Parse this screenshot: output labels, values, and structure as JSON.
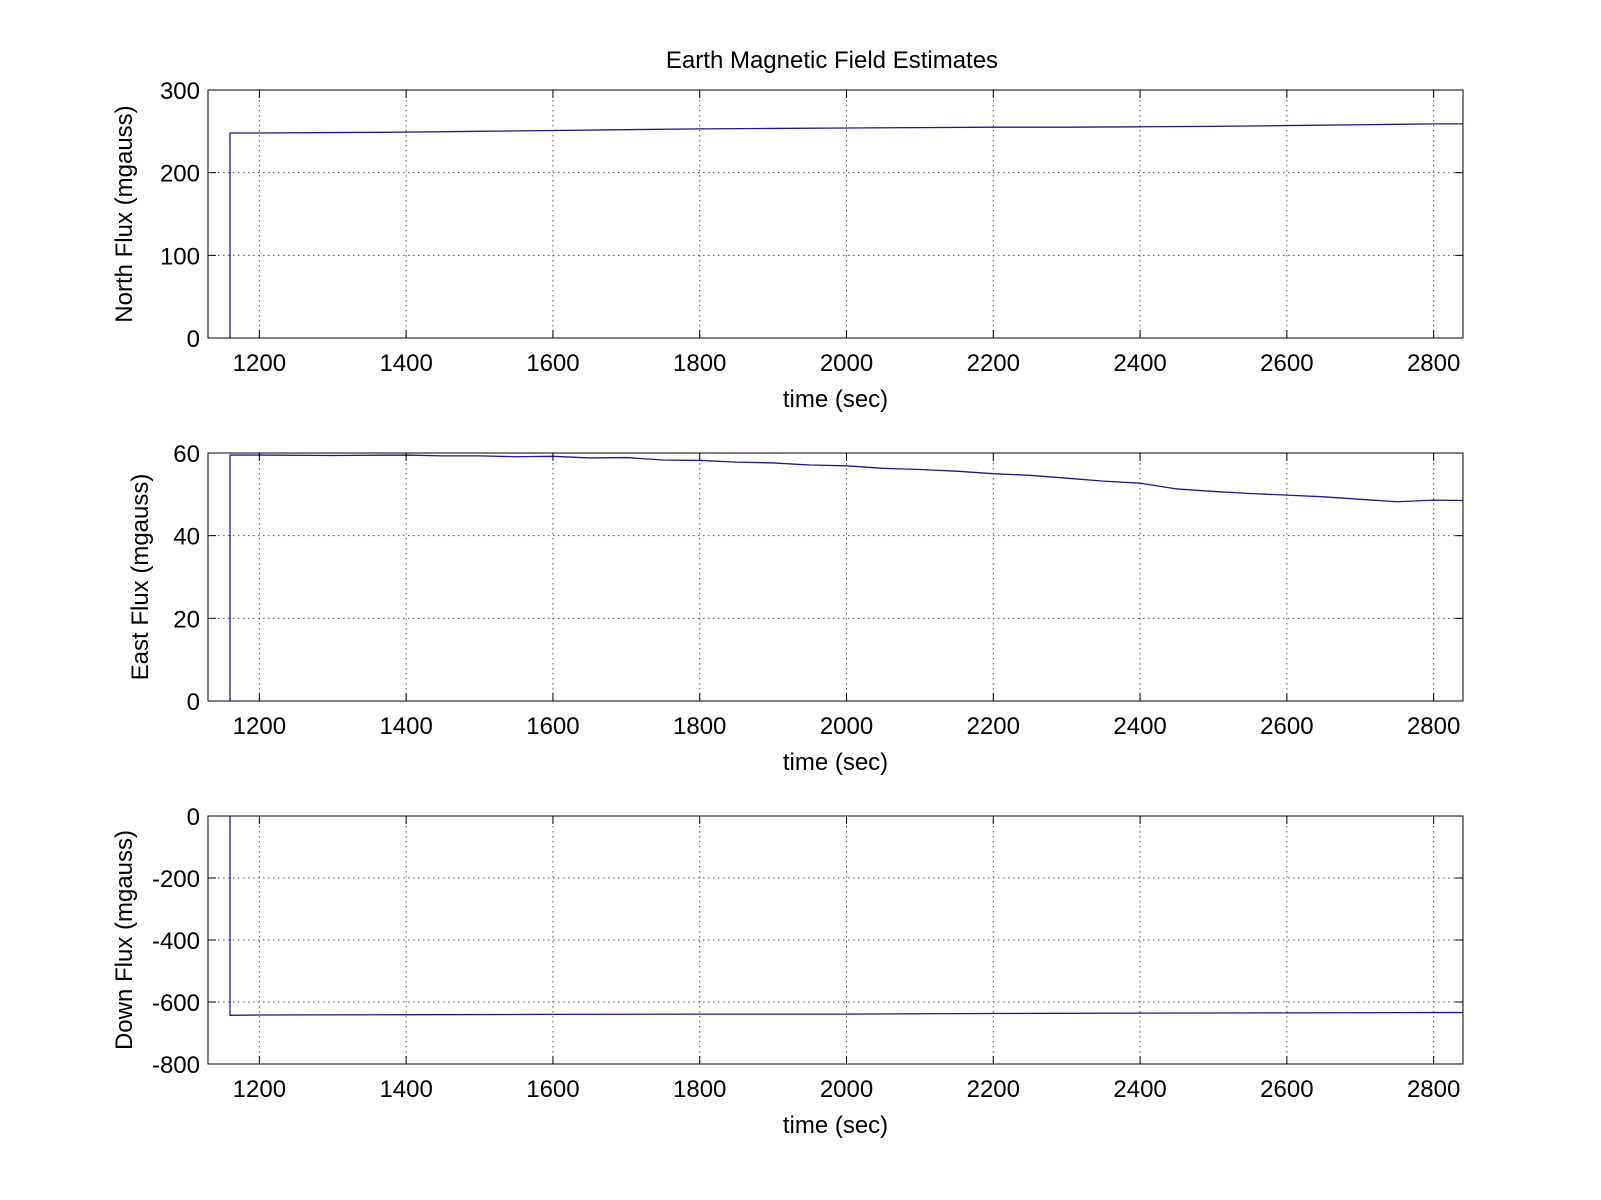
{
  "figure": {
    "title": "Earth Magnetic Field Estimates",
    "line_color": "#1a1a8c"
  },
  "chart_data": [
    {
      "type": "line",
      "title": "Earth Magnetic Field Estimates",
      "xlabel": "time (sec)",
      "ylabel": "North Flux (mgauss)",
      "xlim": [
        1130,
        2840
      ],
      "ylim": [
        0,
        300
      ],
      "xticks": [
        1200,
        1400,
        1600,
        1800,
        2000,
        2200,
        2400,
        2600,
        2800
      ],
      "yticks": [
        0,
        100,
        200,
        300
      ],
      "grid": true,
      "series": [
        {
          "x": [
            1160,
            1160,
            1200,
            1300,
            1400,
            1500,
            1600,
            1700,
            1800,
            1900,
            2000,
            2100,
            2200,
            2300,
            2400,
            2500,
            2600,
            2700,
            2800,
            2840
          ],
          "y": [
            0,
            248,
            248,
            248.5,
            249,
            250,
            251,
            252,
            253,
            253.5,
            254,
            254.5,
            255,
            255,
            255.5,
            256,
            257,
            258,
            259,
            259
          ]
        }
      ]
    },
    {
      "type": "line",
      "title": "",
      "xlabel": "time (sec)",
      "ylabel": "East Flux (mgauss)",
      "xlim": [
        1130,
        2840
      ],
      "ylim": [
        0,
        60
      ],
      "xticks": [
        1200,
        1400,
        1600,
        1800,
        2000,
        2200,
        2400,
        2600,
        2800
      ],
      "yticks": [
        0,
        20,
        40,
        60
      ],
      "grid": true,
      "series": [
        {
          "x": [
            1160,
            1160,
            1200,
            1300,
            1400,
            1450,
            1500,
            1550,
            1600,
            1650,
            1700,
            1750,
            1800,
            1850,
            1900,
            1950,
            2000,
            2050,
            2100,
            2150,
            2200,
            2250,
            2300,
            2350,
            2400,
            2450,
            2500,
            2550,
            2600,
            2650,
            2700,
            2750,
            2800,
            2840
          ],
          "y": [
            0,
            59.5,
            59.5,
            59.4,
            59.5,
            59.3,
            59.3,
            59.1,
            59.2,
            58.8,
            58.9,
            58.3,
            58.2,
            57.8,
            57.6,
            57.1,
            56.9,
            56.3,
            56,
            55.6,
            55,
            54.6,
            53.9,
            53.2,
            52.7,
            51.3,
            50.7,
            50.2,
            49.8,
            49.4,
            48.8,
            48.2,
            48.6,
            48.5
          ]
        }
      ]
    },
    {
      "type": "line",
      "title": "",
      "xlabel": "time (sec)",
      "ylabel": "Down Flux (mgauss)",
      "xlim": [
        1130,
        2840
      ],
      "ylim": [
        -800,
        0
      ],
      "xticks": [
        1200,
        1400,
        1600,
        1800,
        2000,
        2200,
        2400,
        2600,
        2800
      ],
      "yticks": [
        -800,
        -600,
        -400,
        -200,
        0
      ],
      "grid": true,
      "series": [
        {
          "x": [
            1160,
            1160,
            1200,
            1400,
            1600,
            1800,
            2000,
            2200,
            2400,
            2600,
            2800,
            2840
          ],
          "y": [
            0,
            -643,
            -642,
            -641,
            -640,
            -639,
            -639,
            -637,
            -636,
            -635,
            -634,
            -634
          ]
        }
      ]
    }
  ]
}
